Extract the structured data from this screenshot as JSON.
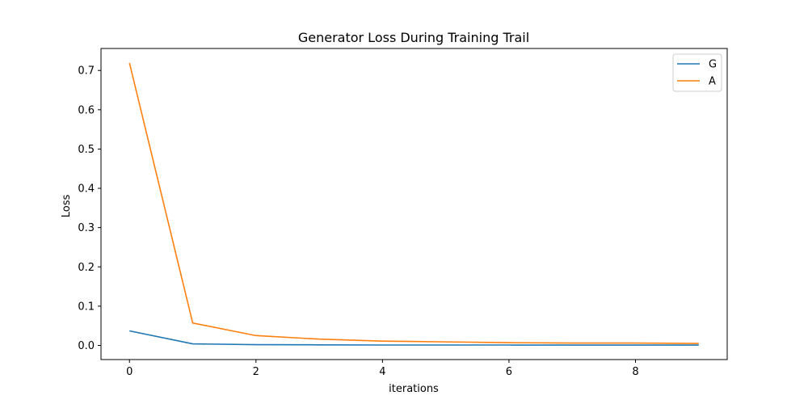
{
  "chart_data": {
    "type": "line",
    "title": "Generator Loss During Training Trail",
    "xlabel": "iterations",
    "ylabel": "Loss",
    "xlim": [
      -0.45,
      9.45
    ],
    "ylim": [
      -0.036,
      0.756
    ],
    "x_ticks": [
      0,
      2,
      4,
      6,
      8
    ],
    "y_ticks": [
      0.0,
      0.1,
      0.2,
      0.3,
      0.4,
      0.5,
      0.6,
      0.7
    ],
    "x_tick_labels": [
      "0",
      "2",
      "4",
      "6",
      "8"
    ],
    "y_tick_labels": [
      "0.0",
      "0.1",
      "0.2",
      "0.3",
      "0.4",
      "0.5",
      "0.6",
      "0.7"
    ],
    "grid": false,
    "legend_position": "top-right",
    "x": [
      0,
      1,
      2,
      3,
      4,
      5,
      6,
      7,
      8,
      9
    ],
    "series": [
      {
        "name": "G",
        "color": "#1f77b4",
        "values": [
          0.037,
          0.004,
          0.002,
          0.0015,
          0.001,
          0.001,
          0.001,
          0.0008,
          0.0008,
          0.0008
        ]
      },
      {
        "name": "A",
        "color": "#ff7f0e",
        "values": [
          0.719,
          0.057,
          0.025,
          0.016,
          0.011,
          0.009,
          0.007,
          0.006,
          0.006,
          0.005
        ]
      }
    ]
  }
}
